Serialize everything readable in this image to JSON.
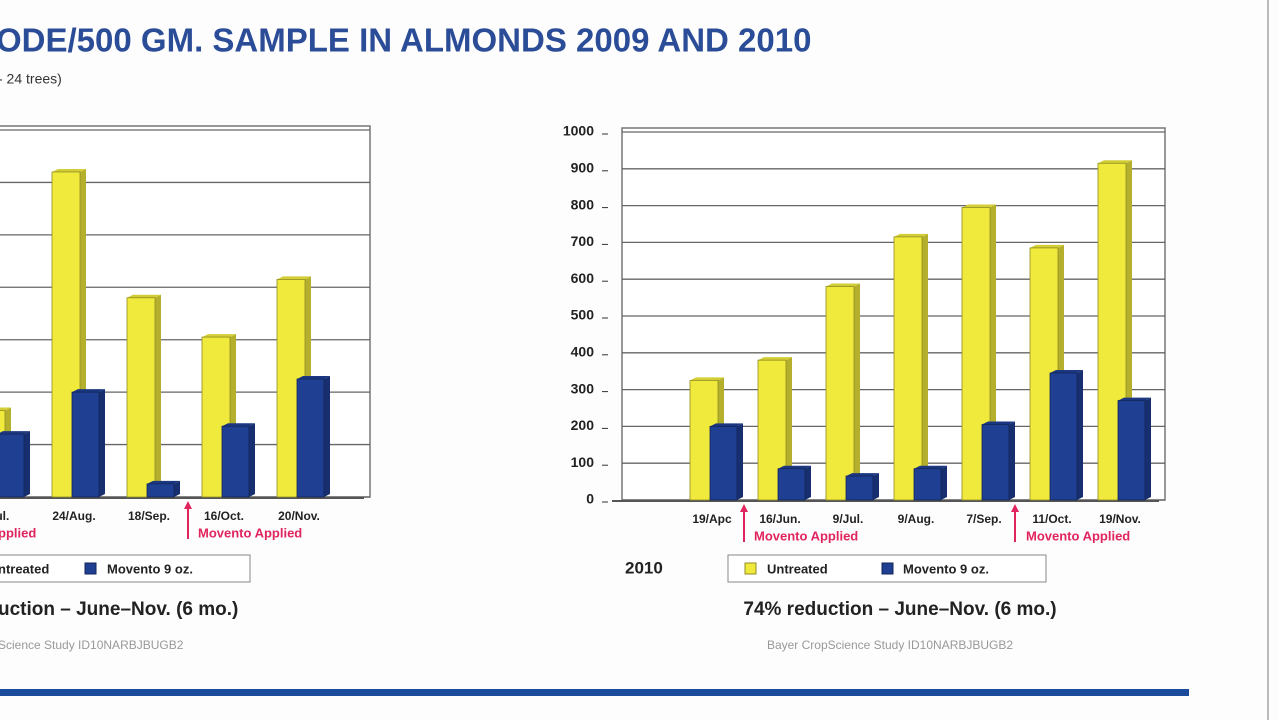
{
  "header": {
    "title": "ODE/500 GM. SAMPLE IN ALMONDS 2009 AND 2010",
    "subtitle": "- 24 trees)"
  },
  "chart_data": [
    {
      "type": "bar",
      "categories": [
        "Jul.",
        "24/Aug.",
        "18/Sep.",
        "16/Oct.",
        "20/Nov."
      ],
      "series": [
        {
          "name": "ntreated",
          "color": "#f0ea3c",
          "values": [
            165,
            620,
            380,
            305,
            415
          ]
        },
        {
          "name": "Movento 9 oz.",
          "color": "#1f3f93",
          "values": [
            120,
            200,
            25,
            135,
            225
          ]
        }
      ],
      "ylim": [
        0,
        700
      ],
      "yticks": [
        0,
        100,
        200,
        300,
        400,
        500,
        600,
        700
      ],
      "ytick_labels": false,
      "grid": true,
      "annotations": [
        "pplied",
        "Movento Applied"
      ],
      "caption": "uction – June–Nov. (6 mo.)",
      "source": "Science Study ID10NARBJBUGB2"
    },
    {
      "type": "bar",
      "label": "2010",
      "categories": [
        null,
        "19/Apc",
        "16/Jun.",
        "9/Jul.",
        "9/Aug.",
        "7/Sep.",
        "11/Oct.",
        "19/Nov."
      ],
      "series": [
        {
          "name": "Untreated",
          "color": "#f0ea3c",
          "values": [
            null,
            325,
            380,
            580,
            715,
            795,
            685,
            915
          ]
        },
        {
          "name": "Movento 9 oz.",
          "color": "#1f3f93",
          "values": [
            null,
            200,
            85,
            65,
            85,
            205,
            345,
            270
          ]
        }
      ],
      "ylim": [
        0,
        1000
      ],
      "yticks": [
        0,
        100,
        200,
        300,
        400,
        500,
        600,
        700,
        800,
        900,
        1000
      ],
      "ytick_labels": true,
      "grid": true,
      "annotations": [
        "Movento Applied",
        "Movento Applied"
      ],
      "caption": "74% reduction – June–Nov. (6 mo.)",
      "source": "Bayer CropScience Study ID10NARBJBUGB2"
    }
  ]
}
